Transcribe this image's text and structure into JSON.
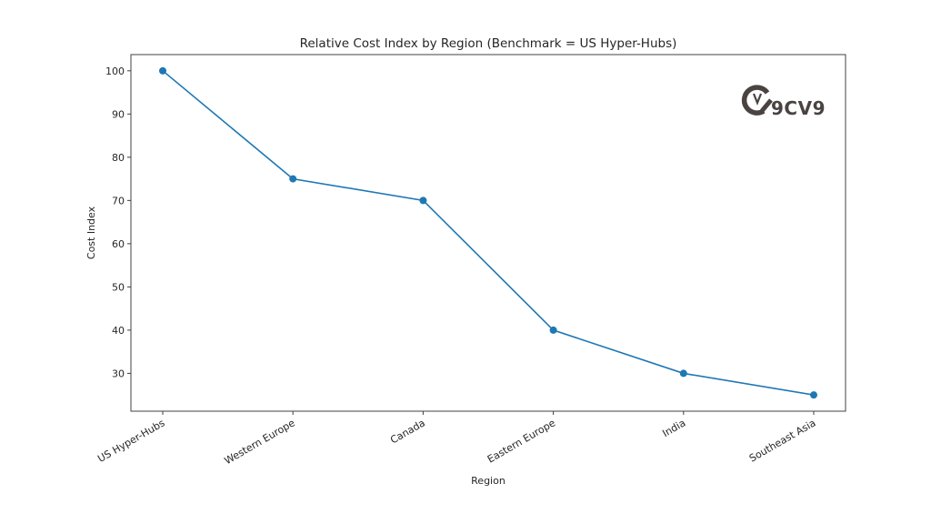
{
  "chart_data": {
    "type": "line",
    "title": "Relative Cost Index by Region (Benchmark = US Hyper-Hubs)",
    "xlabel": "Region",
    "ylabel": "Cost Index",
    "categories": [
      "US Hyper-Hubs",
      "Western Europe",
      "Canada",
      "Eastern Europe",
      "India",
      "Southeast Asia"
    ],
    "series": [
      {
        "name": "Cost Index",
        "values": [
          100,
          75,
          70,
          40,
          30,
          25
        ],
        "color": "#1f77b4",
        "marker": "circle"
      }
    ],
    "yticks": [
      30,
      40,
      50,
      60,
      70,
      80,
      90,
      100
    ],
    "ylim": [
      21.25,
      103.75
    ],
    "grid": false,
    "legend": null,
    "xtick_rotation": 30
  },
  "watermark": {
    "text": "9CV9",
    "color": "#4a4341"
  }
}
